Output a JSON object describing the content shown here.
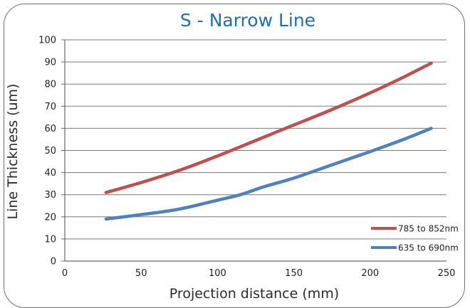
{
  "chart_data": {
    "type": "line",
    "title": "S - Narrow Line",
    "xlabel": "Projection distance (mm)",
    "ylabel": "Line Thickness (um)",
    "xlim": [
      0,
      250
    ],
    "ylim": [
      0,
      100
    ],
    "x_ticks": [
      "0",
      "50",
      "100",
      "150",
      "200",
      "250"
    ],
    "y_ticks": [
      "0",
      "10",
      "20",
      "30",
      "40",
      "50",
      "60",
      "70",
      "80",
      "90",
      "100"
    ],
    "grid": "horizontal",
    "legend_position": "bottom-right",
    "title_color": "#1f6fb0",
    "series": [
      {
        "name": "785 to 852nm",
        "color": "#c0504d",
        "points": [
          [
            27,
            31
          ],
          [
            50,
            35.5
          ],
          [
            75,
            41
          ],
          [
            100,
            47.5
          ],
          [
            125,
            54.5
          ],
          [
            150,
            61.5
          ],
          [
            175,
            68.5
          ],
          [
            200,
            76
          ],
          [
            220,
            82.5
          ],
          [
            240,
            89.5
          ]
        ]
      },
      {
        "name": "635 to 690nm",
        "color": "#4f81bd",
        "points": [
          [
            27,
            19
          ],
          [
            50,
            21
          ],
          [
            75,
            23.5
          ],
          [
            100,
            27.5
          ],
          [
            115,
            30
          ],
          [
            130,
            33.5
          ],
          [
            150,
            37.5
          ],
          [
            175,
            43.5
          ],
          [
            200,
            49.5
          ],
          [
            220,
            54.5
          ],
          [
            240,
            60
          ]
        ]
      }
    ]
  }
}
